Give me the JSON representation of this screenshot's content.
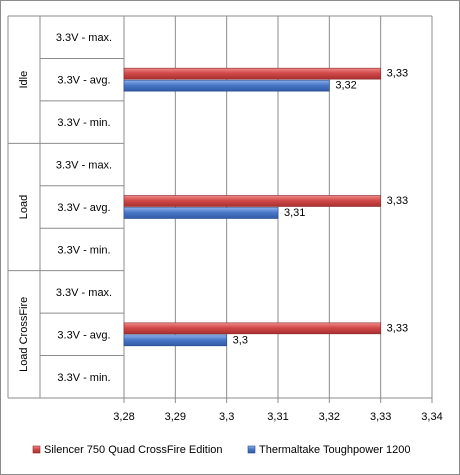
{
  "chart_data": {
    "type": "bar",
    "orientation": "horizontal",
    "xlim": [
      3.28,
      3.34
    ],
    "x_ticks": [
      "3,28",
      "3,29",
      "3,3",
      "3,31",
      "3,32",
      "3,33",
      "3,34"
    ],
    "grid": true,
    "legend_position": "bottom",
    "groups": [
      {
        "label": "Idle",
        "categories": [
          "3.3V - max.",
          "3.3V - avg.",
          "3.3V - min."
        ],
        "series_values": [
          [
            null,
            3.33,
            null
          ],
          [
            null,
            3.32,
            null
          ]
        ],
        "series_labels": [
          [
            "",
            "3,33",
            ""
          ],
          [
            "",
            "3,32",
            ""
          ]
        ]
      },
      {
        "label": "Load",
        "categories": [
          "3.3V - max.",
          "3.3V - avg.",
          "3.3V - min."
        ],
        "series_values": [
          [
            null,
            3.33,
            null
          ],
          [
            null,
            3.31,
            null
          ]
        ],
        "series_labels": [
          [
            "",
            "3,33",
            ""
          ],
          [
            "",
            "3,31",
            ""
          ]
        ]
      },
      {
        "label": "Load CrossFire",
        "categories": [
          "3.3V - max.",
          "3.3V - avg.",
          "3.3V - min."
        ],
        "series_values": [
          [
            null,
            3.33,
            null
          ],
          [
            null,
            3.3,
            null
          ]
        ],
        "series_labels": [
          [
            "",
            "3,33",
            ""
          ],
          [
            "",
            "3,3",
            ""
          ]
        ]
      }
    ],
    "series": [
      {
        "name": "Silencer 750 Quad CrossFire Edition",
        "color": "#d24a4a"
      },
      {
        "name": "Thermaltake Toughpower 1200",
        "color": "#4a78c8"
      }
    ]
  }
}
